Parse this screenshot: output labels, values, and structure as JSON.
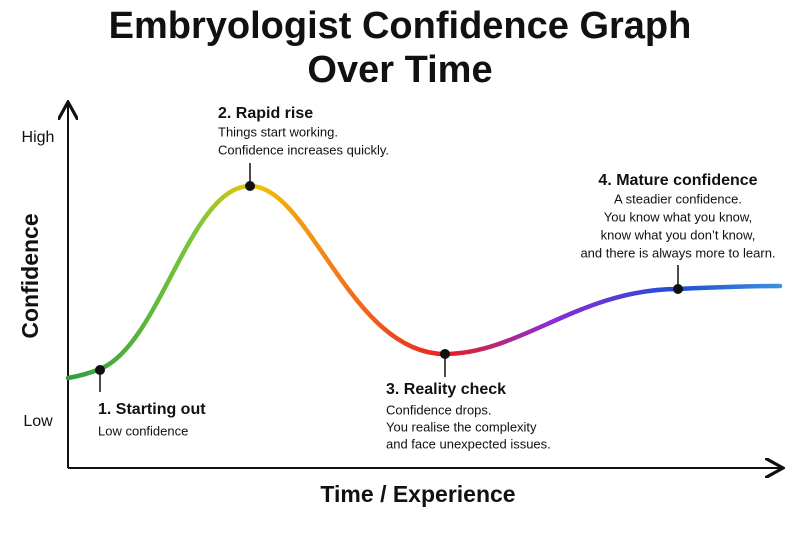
{
  "title_lines": [
    "Embryologist Confidence Graph",
    "Over Time"
  ],
  "y_axis": {
    "label": "Confidence",
    "high": "High",
    "low": "Low"
  },
  "x_axis": {
    "label": "Time / Experience"
  },
  "stages": [
    {
      "title": "1. Starting out",
      "lines": [
        "Low confidence"
      ]
    },
    {
      "title": "2. Rapid rise",
      "lines": [
        "Things start working.",
        "Confidence increases quickly."
      ]
    },
    {
      "title": "3. Reality check",
      "lines": [
        "Confidence drops.",
        "You realise the complexity",
        "and face unexpected issues."
      ]
    },
    {
      "title": "4. Mature confidence",
      "lines": [
        "A steadier confidence.",
        "You know what you know,",
        "know what you don’t know,",
        "and there is always more to learn."
      ]
    }
  ]
}
